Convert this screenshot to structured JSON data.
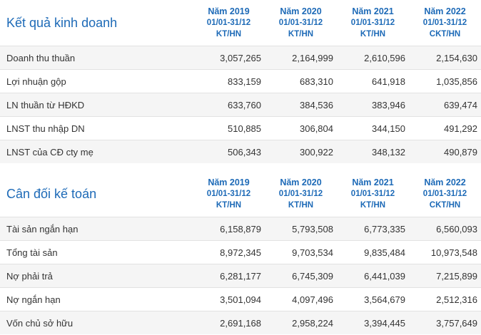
{
  "sections": [
    {
      "title": "Kết quả kinh doanh",
      "years": [
        {
          "year": "Năm 2019",
          "period": "01/01-31/12",
          "type": "KT/HN"
        },
        {
          "year": "Năm 2020",
          "period": "01/01-31/12",
          "type": "KT/HN"
        },
        {
          "year": "Năm 2021",
          "period": "01/01-31/12",
          "type": "KT/HN"
        },
        {
          "year": "Năm 2022",
          "period": "01/01-31/12",
          "type": "CKT/HN"
        }
      ],
      "rows": [
        {
          "label": "Doanh thu thuần",
          "values": [
            "3,057,265",
            "2,164,999",
            "2,610,596",
            "2,154,630"
          ]
        },
        {
          "label": "Lợi nhuận gộp",
          "values": [
            "833,159",
            "683,310",
            "641,918",
            "1,035,856"
          ]
        },
        {
          "label": "LN thuần từ HĐKD",
          "values": [
            "633,760",
            "384,536",
            "383,946",
            "639,474"
          ]
        },
        {
          "label": "LNST thu nhập DN",
          "values": [
            "510,885",
            "306,804",
            "344,150",
            "491,292"
          ]
        },
        {
          "label": "LNST của CĐ cty mẹ",
          "values": [
            "506,343",
            "300,922",
            "348,132",
            "490,879"
          ]
        }
      ]
    },
    {
      "title": "Cân đối kế toán",
      "years": [
        {
          "year": "Năm 2019",
          "period": "01/01-31/12",
          "type": "KT/HN"
        },
        {
          "year": "Năm 2020",
          "period": "01/01-31/12",
          "type": "KT/HN"
        },
        {
          "year": "Năm 2021",
          "period": "01/01-31/12",
          "type": "KT/HN"
        },
        {
          "year": "Năm 2022",
          "period": "01/01-31/12",
          "type": "CKT/HN"
        }
      ],
      "rows": [
        {
          "label": "Tài sản ngắn hạn",
          "values": [
            "6,158,879",
            "5,793,508",
            "6,773,335",
            "6,560,093"
          ]
        },
        {
          "label": "Tổng tài sản",
          "values": [
            "8,972,345",
            "9,703,534",
            "9,835,484",
            "10,973,548"
          ]
        },
        {
          "label": "Nợ phải trả",
          "values": [
            "6,281,177",
            "6,745,309",
            "6,441,039",
            "7,215,899"
          ]
        },
        {
          "label": "Nợ ngắn hạn",
          "values": [
            "3,501,094",
            "4,097,496",
            "3,564,679",
            "2,512,316"
          ]
        },
        {
          "label": "Vốn chủ sở hữu",
          "values": [
            "2,691,168",
            "2,958,224",
            "3,394,445",
            "3,757,649"
          ]
        }
      ]
    }
  ]
}
